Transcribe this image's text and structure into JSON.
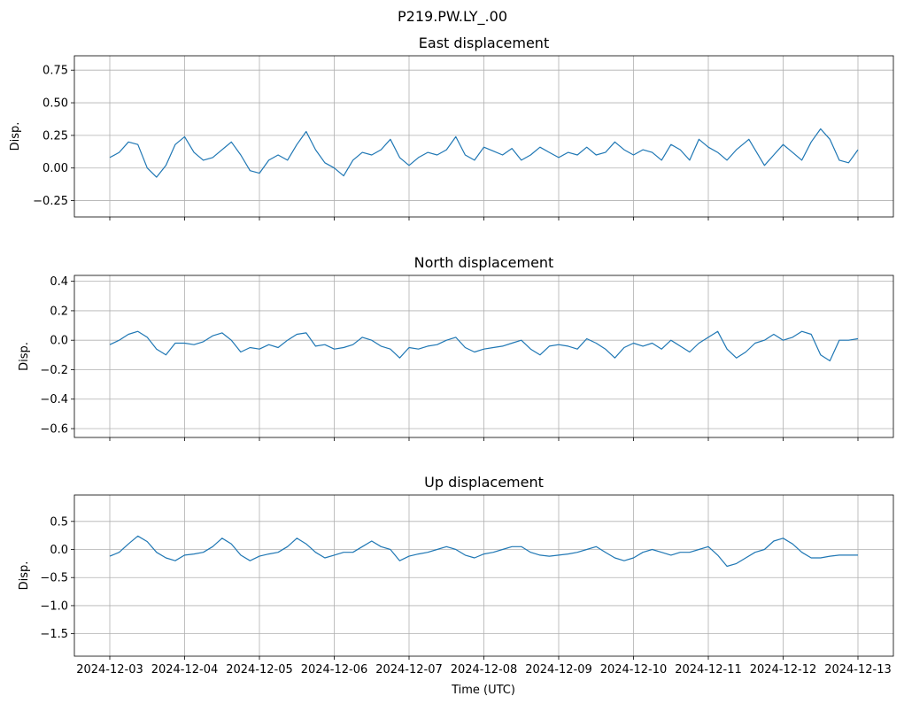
{
  "figure_title": "P219.PW.LY_.00",
  "xlabel": "Time (UTC)",
  "x_ticks": [
    "2024-12-03",
    "2024-12-04",
    "2024-12-05",
    "2024-12-06",
    "2024-12-07",
    "2024-12-08",
    "2024-12-09",
    "2024-12-10",
    "2024-12-11",
    "2024-12-12",
    "2024-12-13"
  ],
  "colors": {
    "line": "#1f77b4",
    "grid": "#b0b0b0",
    "axes": "#000000"
  },
  "chart_data": [
    {
      "type": "line",
      "title": "East displacement",
      "ylabel": "Disp.",
      "x_range": [
        "2024-12-03",
        "2024-12-13"
      ],
      "ylim": [
        -0.375,
        0.86
      ],
      "yticks": [
        -0.25,
        0.0,
        0.25,
        0.5,
        0.75
      ],
      "ytick_labels": [
        "−0.25",
        "0.00",
        "0.25",
        "0.50",
        "0.75"
      ],
      "grid": true,
      "series": [
        {
          "x": [
            "2024-12-03T00:00",
            "2024-12-03T03:00",
            "2024-12-03T06:00",
            "2024-12-03T09:00",
            "2024-12-03T12:00",
            "2024-12-03T15:00",
            "2024-12-03T18:00",
            "2024-12-03T21:00",
            "2024-12-04T00:00",
            "2024-12-04T03:00",
            "2024-12-04T06:00",
            "2024-12-04T09:00",
            "2024-12-04T12:00",
            "2024-12-04T15:00",
            "2024-12-04T18:00",
            "2024-12-04T21:00",
            "2024-12-05T00:00",
            "2024-12-05T03:00",
            "2024-12-05T06:00",
            "2024-12-05T09:00",
            "2024-12-05T12:00",
            "2024-12-05T15:00",
            "2024-12-05T18:00",
            "2024-12-05T21:00",
            "2024-12-06T00:00",
            "2024-12-06T03:00",
            "2024-12-06T06:00",
            "2024-12-06T09:00",
            "2024-12-06T12:00",
            "2024-12-06T15:00",
            "2024-12-06T18:00",
            "2024-12-06T21:00",
            "2024-12-07T00:00",
            "2024-12-07T03:00",
            "2024-12-07T06:00",
            "2024-12-07T09:00",
            "2024-12-07T12:00",
            "2024-12-07T15:00",
            "2024-12-07T18:00",
            "2024-12-07T21:00",
            "2024-12-08T00:00",
            "2024-12-08T03:00",
            "2024-12-08T06:00",
            "2024-12-08T09:00",
            "2024-12-08T12:00",
            "2024-12-08T15:00",
            "2024-12-08T18:00",
            "2024-12-08T21:00",
            "2024-12-09T00:00",
            "2024-12-09T03:00",
            "2024-12-09T06:00",
            "2024-12-09T09:00",
            "2024-12-09T12:00",
            "2024-12-09T15:00",
            "2024-12-09T18:00",
            "2024-12-09T21:00",
            "2024-12-10T00:00",
            "2024-12-10T03:00",
            "2024-12-10T06:00",
            "2024-12-10T09:00",
            "2024-12-10T12:00",
            "2024-12-10T15:00",
            "2024-12-10T18:00",
            "2024-12-10T21:00",
            "2024-12-11T00:00",
            "2024-12-11T03:00",
            "2024-12-11T06:00",
            "2024-12-11T09:00",
            "2024-12-11T12:00",
            "2024-12-11T13:00",
            "2024-12-11T15:00",
            "2024-12-11T18:00",
            "2024-12-11T21:00",
            "2024-12-12T00:00",
            "2024-12-12T03:00",
            "2024-12-12T06:00",
            "2024-12-12T09:00",
            "2024-12-12T12:00",
            "2024-12-12T15:00",
            "2024-12-12T18:00",
            "2024-12-12T21:00",
            "2024-12-13T00:00"
          ],
          "values": [
            0.08,
            0.12,
            0.2,
            0.18,
            0.0,
            -0.07,
            0.02,
            0.18,
            0.24,
            0.12,
            0.06,
            0.08,
            0.14,
            0.2,
            0.1,
            -0.02,
            -0.04,
            0.06,
            0.1,
            0.06,
            0.18,
            0.28,
            0.14,
            0.04,
            0.0,
            -0.06,
            0.06,
            0.12,
            0.1,
            0.14,
            0.22,
            0.08,
            0.02,
            0.08,
            0.12,
            0.1,
            0.14,
            0.24,
            0.1,
            0.06,
            0.16,
            0.13,
            0.1,
            0.15,
            0.06,
            0.1,
            0.16,
            0.12,
            0.08,
            0.12,
            0.1,
            0.16,
            0.1,
            0.12,
            0.2,
            0.14,
            0.1,
            0.14,
            0.12,
            0.06,
            0.18,
            0.14,
            0.06,
            0.22,
            0.16,
            0.12,
            0.06,
            0.14,
            0.2,
            0.22,
            0.14,
            0.02,
            0.1,
            0.18,
            0.12,
            0.06,
            0.2,
            0.3,
            0.22,
            0.06,
            0.04,
            0.14
          ]
        }
      ]
    },
    {
      "type": "line",
      "title": "North displacement",
      "ylabel": "Disp.",
      "x_range": [
        "2024-12-03",
        "2024-12-13"
      ],
      "ylim": [
        -0.66,
        0.44
      ],
      "yticks": [
        -0.6,
        -0.4,
        -0.2,
        0.0,
        0.2,
        0.4
      ],
      "ytick_labels": [
        "−0.6",
        "−0.4",
        "−0.2",
        "0.0",
        "0.2",
        "0.4"
      ],
      "grid": true,
      "series": [
        {
          "x": [
            "2024-12-03T00:00",
            "2024-12-03T03:00",
            "2024-12-03T06:00",
            "2024-12-03T09:00",
            "2024-12-03T12:00",
            "2024-12-03T15:00",
            "2024-12-03T18:00",
            "2024-12-03T21:00",
            "2024-12-04T00:00",
            "2024-12-04T03:00",
            "2024-12-04T06:00",
            "2024-12-04T09:00",
            "2024-12-04T12:00",
            "2024-12-04T15:00",
            "2024-12-04T18:00",
            "2024-12-04T21:00",
            "2024-12-05T00:00",
            "2024-12-05T03:00",
            "2024-12-05T06:00",
            "2024-12-05T09:00",
            "2024-12-05T12:00",
            "2024-12-05T15:00",
            "2024-12-05T18:00",
            "2024-12-05T21:00",
            "2024-12-06T00:00",
            "2024-12-06T03:00",
            "2024-12-06T06:00",
            "2024-12-06T09:00",
            "2024-12-06T12:00",
            "2024-12-06T15:00",
            "2024-12-06T18:00",
            "2024-12-06T21:00",
            "2024-12-07T00:00",
            "2024-12-07T03:00",
            "2024-12-07T06:00",
            "2024-12-07T09:00",
            "2024-12-07T12:00",
            "2024-12-07T15:00",
            "2024-12-07T18:00",
            "2024-12-07T21:00",
            "2024-12-08T00:00",
            "2024-12-08T03:00",
            "2024-12-08T06:00",
            "2024-12-08T09:00",
            "2024-12-08T12:00",
            "2024-12-08T15:00",
            "2024-12-08T18:00",
            "2024-12-08T21:00",
            "2024-12-09T00:00",
            "2024-12-09T03:00",
            "2024-12-09T06:00",
            "2024-12-09T09:00",
            "2024-12-09T12:00",
            "2024-12-09T15:00",
            "2024-12-09T18:00",
            "2024-12-09T21:00",
            "2024-12-10T00:00",
            "2024-12-10T03:00",
            "2024-12-10T06:00",
            "2024-12-10T09:00",
            "2024-12-10T12:00",
            "2024-12-10T15:00",
            "2024-12-10T18:00",
            "2024-12-10T21:00",
            "2024-12-11T00:00",
            "2024-12-11T03:00",
            "2024-12-11T06:00",
            "2024-12-11T09:00",
            "2024-12-11T12:00",
            "2024-12-11T15:00",
            "2024-12-11T18:00",
            "2024-12-11T21:00",
            "2024-12-12T00:00",
            "2024-12-12T03:00",
            "2024-12-12T06:00",
            "2024-12-12T09:00",
            "2024-12-12T12:00",
            "2024-12-12T15:00",
            "2024-12-12T18:00",
            "2024-12-12T21:00",
            "2024-12-13T00:00"
          ],
          "values": [
            -0.03,
            0.0,
            0.04,
            0.06,
            0.02,
            -0.06,
            -0.1,
            -0.02,
            -0.02,
            -0.03,
            -0.01,
            0.03,
            0.05,
            0.0,
            -0.08,
            -0.05,
            -0.06,
            -0.03,
            -0.05,
            0.0,
            0.04,
            0.05,
            -0.04,
            -0.03,
            -0.06,
            -0.05,
            -0.03,
            0.02,
            0.0,
            -0.04,
            -0.06,
            -0.12,
            -0.05,
            -0.06,
            -0.04,
            -0.03,
            0.0,
            0.02,
            -0.05,
            -0.08,
            -0.06,
            -0.05,
            -0.04,
            -0.02,
            0.0,
            -0.06,
            -0.1,
            -0.04,
            -0.03,
            -0.04,
            -0.06,
            0.01,
            -0.02,
            -0.06,
            -0.12,
            -0.05,
            -0.02,
            -0.04,
            -0.02,
            -0.06,
            0.0,
            -0.04,
            -0.08,
            -0.02,
            0.02,
            0.06,
            -0.06,
            -0.12,
            -0.08,
            -0.02,
            0.0,
            0.04,
            0.0,
            0.02,
            0.06,
            0.04,
            -0.1,
            -0.14,
            0.0,
            0.0,
            0.01
          ]
        }
      ]
    },
    {
      "type": "line",
      "title": "Up displacement",
      "ylabel": "Disp.",
      "x_range": [
        "2024-12-03",
        "2024-12-13"
      ],
      "ylim": [
        -1.9,
        0.97
      ],
      "yticks": [
        -1.5,
        -1.0,
        -0.5,
        0.0,
        0.5
      ],
      "ytick_labels": [
        "−1.5",
        "−1.0",
        "−0.5",
        "0.0",
        "0.5"
      ],
      "grid": true,
      "series": [
        {
          "x": [
            "2024-12-03T00:00",
            "2024-12-03T03:00",
            "2024-12-03T06:00",
            "2024-12-03T09:00",
            "2024-12-03T12:00",
            "2024-12-03T15:00",
            "2024-12-03T18:00",
            "2024-12-03T21:00",
            "2024-12-04T00:00",
            "2024-12-04T03:00",
            "2024-12-04T06:00",
            "2024-12-04T09:00",
            "2024-12-04T12:00",
            "2024-12-04T15:00",
            "2024-12-04T18:00",
            "2024-12-04T21:00",
            "2024-12-05T00:00",
            "2024-12-05T03:00",
            "2024-12-05T06:00",
            "2024-12-05T09:00",
            "2024-12-05T12:00",
            "2024-12-05T15:00",
            "2024-12-05T18:00",
            "2024-12-05T21:00",
            "2024-12-06T00:00",
            "2024-12-06T03:00",
            "2024-12-06T06:00",
            "2024-12-06T09:00",
            "2024-12-06T12:00",
            "2024-12-06T15:00",
            "2024-12-06T18:00",
            "2024-12-06T21:00",
            "2024-12-07T00:00",
            "2024-12-07T03:00",
            "2024-12-07T06:00",
            "2024-12-07T09:00",
            "2024-12-07T12:00",
            "2024-12-07T15:00",
            "2024-12-07T18:00",
            "2024-12-07T21:00",
            "2024-12-08T00:00",
            "2024-12-08T03:00",
            "2024-12-08T06:00",
            "2024-12-08T09:00",
            "2024-12-08T12:00",
            "2024-12-08T15:00",
            "2024-12-08T18:00",
            "2024-12-08T21:00",
            "2024-12-09T00:00",
            "2024-12-09T03:00",
            "2024-12-09T06:00",
            "2024-12-09T09:00",
            "2024-12-09T12:00",
            "2024-12-09T15:00",
            "2024-12-09T18:00",
            "2024-12-09T21:00",
            "2024-12-10T00:00",
            "2024-12-10T03:00",
            "2024-12-10T06:00",
            "2024-12-10T09:00",
            "2024-12-10T12:00",
            "2024-12-10T15:00",
            "2024-12-10T18:00",
            "2024-12-10T21:00",
            "2024-12-11T00:00",
            "2024-12-11T03:00",
            "2024-12-11T06:00",
            "2024-12-11T09:00",
            "2024-12-11T12:00",
            "2024-12-11T15:00",
            "2024-12-11T18:00",
            "2024-12-11T21:00",
            "2024-12-12T00:00",
            "2024-12-12T03:00",
            "2024-12-12T06:00",
            "2024-12-12T09:00",
            "2024-12-12T12:00",
            "2024-12-12T15:00",
            "2024-12-12T18:00",
            "2024-12-12T21:00",
            "2024-12-13T00:00"
          ],
          "values": [
            -0.12,
            -0.05,
            0.1,
            0.24,
            0.14,
            -0.05,
            -0.15,
            -0.2,
            -0.1,
            -0.08,
            -0.05,
            0.05,
            0.2,
            0.1,
            -0.1,
            -0.2,
            -0.12,
            -0.08,
            -0.05,
            0.05,
            0.2,
            0.1,
            -0.05,
            -0.15,
            -0.1,
            -0.05,
            -0.05,
            0.05,
            0.15,
            0.05,
            0.0,
            -0.2,
            -0.12,
            -0.08,
            -0.05,
            0.0,
            0.05,
            0.0,
            -0.1,
            -0.15,
            -0.08,
            -0.05,
            0.0,
            0.05,
            0.05,
            -0.05,
            -0.1,
            -0.12,
            -0.1,
            -0.08,
            -0.05,
            0.0,
            0.05,
            -0.05,
            -0.15,
            -0.2,
            -0.15,
            -0.05,
            0.0,
            -0.05,
            -0.1,
            -0.05,
            -0.05,
            0.0,
            0.05,
            -0.1,
            -0.3,
            -0.25,
            -0.15,
            -0.05,
            0.0,
            0.15,
            0.2,
            0.1,
            -0.05,
            -0.15,
            -0.15,
            -0.12,
            -0.1,
            -0.1,
            -0.1
          ]
        }
      ]
    }
  ]
}
